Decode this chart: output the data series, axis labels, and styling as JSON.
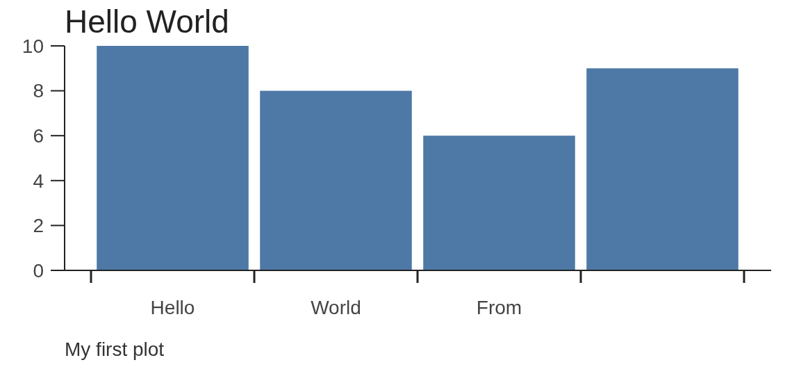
{
  "chart_data": {
    "type": "bar",
    "title": "Hello World",
    "categories": [
      "Hello",
      "World",
      "From",
      null
    ],
    "values": [
      10,
      8,
      6,
      9
    ],
    "color": "#4e79a7",
    "ylim": [
      0,
      10
    ],
    "yticks": [
      0,
      2,
      4,
      6,
      8,
      10
    ],
    "annotations": [
      "My first plot"
    ]
  }
}
